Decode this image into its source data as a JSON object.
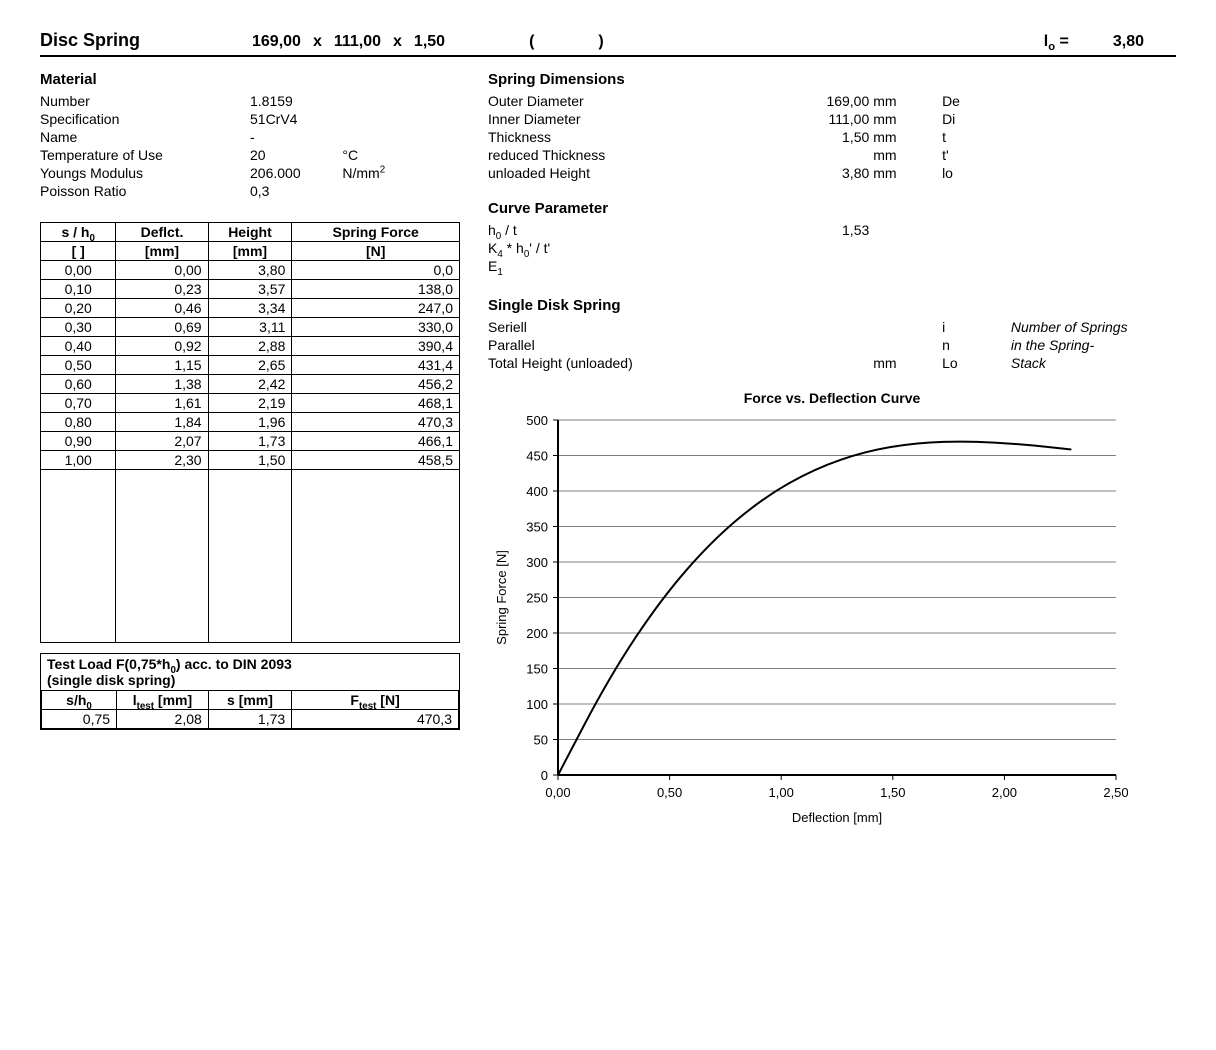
{
  "title": {
    "label": "Disc Spring",
    "dim1": "169,00",
    "sep1": "x",
    "dim2": "111,00",
    "sep2": "x",
    "dim3": "1,50",
    "paren_open": "(",
    "paren_close": ")",
    "lo_label": "l",
    "lo_sub": "o",
    "lo_eq": " =",
    "lo_value": "3,80"
  },
  "material": {
    "heading": "Material",
    "rows": [
      {
        "label": "Number",
        "value": "1.8159",
        "unit": "",
        "sym": ""
      },
      {
        "label": "Specification",
        "value": "51CrV4",
        "unit": "",
        "sym": ""
      },
      {
        "label": "Name",
        "value": "-",
        "unit": "",
        "sym": ""
      },
      {
        "label": "Temperature of Use",
        "value": "20",
        "unit": "°C",
        "sym": ""
      },
      {
        "label": "Youngs Modulus",
        "value": "206.000",
        "unit_html": "N/mm²",
        "sym": ""
      },
      {
        "label": "Poisson Ratio",
        "value": "0,3",
        "unit": "",
        "sym": ""
      }
    ]
  },
  "dims": {
    "heading": "Spring Dimensions",
    "rows": [
      {
        "label": "Outer Diameter",
        "value": "169,00",
        "unit": "mm",
        "sym": "De"
      },
      {
        "label": "Inner Diameter",
        "value": "111,00",
        "unit": "mm",
        "sym": "Di"
      },
      {
        "label": "Thickness",
        "value": "1,50",
        "unit": "mm",
        "sym": "t"
      },
      {
        "label": "reduced Thickness",
        "value": "",
        "unit": "mm",
        "sym": "t'"
      },
      {
        "label": "unloaded Height",
        "value": "3,80",
        "unit": "mm",
        "sym": "lo"
      }
    ]
  },
  "curve": {
    "heading": "Curve Parameter",
    "h0_t_label_a": "h",
    "h0_t_label_b": "0",
    "h0_t_label_c": " / t",
    "h0_t_value": "1,53",
    "k4_label_a": "K",
    "k4_label_b": "4",
    "k4_label_c": " * h",
    "k4_label_d": "0",
    "k4_label_e": "' / t'",
    "e1_a": "E",
    "e1_b": "1"
  },
  "single": {
    "heading": "Single Disk Spring",
    "rows": [
      {
        "label": "Seriell",
        "value": "",
        "unit": "",
        "sym": "i"
      },
      {
        "label": "Parallel",
        "value": "",
        "unit": "",
        "sym": "n"
      },
      {
        "label": "Total Height (unloaded)",
        "value": "",
        "unit": "mm",
        "sym": "Lo"
      }
    ],
    "note1": "Number of Springs",
    "note2": "in the Spring-",
    "note3": "Stack"
  },
  "table": {
    "head": {
      "c1a": "s / h",
      "c1b": "0",
      "c2": "Deflct.",
      "c3": "Height",
      "c4": "Spring Force"
    },
    "units": {
      "c1": "[ ]",
      "c2": "[mm]",
      "c3": "[mm]",
      "c4": "[N]"
    },
    "rows": [
      [
        "0,00",
        "0,00",
        "3,80",
        "0,0"
      ],
      [
        "0,10",
        "0,23",
        "3,57",
        "138,0"
      ],
      [
        "0,20",
        "0,46",
        "3,34",
        "247,0"
      ],
      [
        "0,30",
        "0,69",
        "3,11",
        "330,0"
      ],
      [
        "0,40",
        "0,92",
        "2,88",
        "390,4"
      ],
      [
        "0,50",
        "1,15",
        "2,65",
        "431,4"
      ],
      [
        "0,60",
        "1,38",
        "2,42",
        "456,2"
      ],
      [
        "0,70",
        "1,61",
        "2,19",
        "468,1"
      ],
      [
        "0,80",
        "1,84",
        "1,96",
        "470,3"
      ],
      [
        "0,90",
        "2,07",
        "1,73",
        "466,1"
      ],
      [
        "1,00",
        "2,30",
        "1,50",
        "458,5"
      ]
    ]
  },
  "testload": {
    "cap_a": "Test Load F(0,75*h",
    "cap_b": "0",
    "cap_c": ") acc. to DIN 2093",
    "cap2": "(single disk spring)",
    "head": {
      "c1a": "s/h",
      "c1b": "0",
      "c2a": "l",
      "c2b": "test",
      "c2c": " [mm]",
      "c3": "s [mm]",
      "c4a": "F",
      "c4b": "test",
      "c4c": " [N]"
    },
    "row": [
      "0,75",
      "2,08",
      "1,73",
      "470,3"
    ]
  },
  "chart": {
    "title": "Force vs. Deflection Curve",
    "ylabel": "Spring Force [N]",
    "xlabel": "Deflection [mm]",
    "xlim": [
      0,
      2.5
    ],
    "ylim": [
      0,
      500
    ],
    "xticks": [
      "0,00",
      "0,50",
      "1,00",
      "1,50",
      "2,00",
      "2,50"
    ],
    "yticks": [
      "0",
      "50",
      "100",
      "150",
      "200",
      "250",
      "300",
      "350",
      "400",
      "450",
      "500"
    ],
    "grid_color": "#000000",
    "line_color": "#000000",
    "line_width": 2,
    "background": "#ffffff",
    "tick_fontsize": 13,
    "label_fontsize": 13,
    "points": [
      [
        0.0,
        0.0
      ],
      [
        0.23,
        138.0
      ],
      [
        0.46,
        247.0
      ],
      [
        0.69,
        330.0
      ],
      [
        0.92,
        390.4
      ],
      [
        1.15,
        431.4
      ],
      [
        1.38,
        456.2
      ],
      [
        1.61,
        468.1
      ],
      [
        1.84,
        470.3
      ],
      [
        2.07,
        466.1
      ],
      [
        2.3,
        458.5
      ]
    ]
  }
}
